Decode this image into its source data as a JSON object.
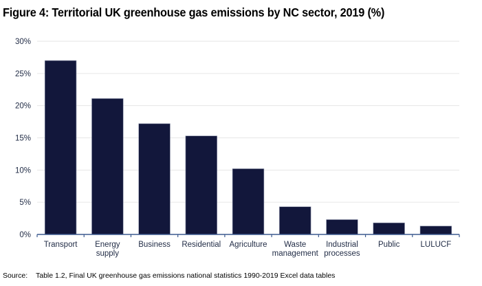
{
  "chart_data": {
    "type": "bar",
    "title": "Figure 4: Territorial UK greenhouse gas emissions by NC sector, 2019 (%)",
    "xlabel": "",
    "ylabel": "",
    "categories": [
      [
        "Transport"
      ],
      [
        "Energy",
        "supply"
      ],
      [
        "Business"
      ],
      [
        "Residential"
      ],
      [
        "Agriculture"
      ],
      [
        "Waste",
        "management"
      ],
      [
        "Industrial",
        "processes"
      ],
      [
        "Public"
      ],
      [
        "LULUCF"
      ]
    ],
    "category_names": [
      "Transport",
      "Energy supply",
      "Business",
      "Residential",
      "Agriculture",
      "Waste management",
      "Industrial processes",
      "Public",
      "LULUCF"
    ],
    "values": [
      27.0,
      21.1,
      17.2,
      15.3,
      10.2,
      4.3,
      2.3,
      1.8,
      1.3
    ],
    "ylim": [
      0,
      30
    ],
    "yticks": [
      0,
      5,
      10,
      15,
      20,
      25,
      30
    ],
    "ytick_labels": [
      "0%",
      "5%",
      "10%",
      "15%",
      "20%",
      "25%",
      "30%"
    ],
    "grid": true,
    "legend": "none",
    "bar_color": "#12173b",
    "grid_color": "#e6e6e6",
    "axis_color": "#3c5a8f"
  },
  "source": {
    "label": "Source:",
    "text": "Table 1.2, Final UK greenhouse gas emissions national statistics 1990-2019 Excel data tables"
  }
}
